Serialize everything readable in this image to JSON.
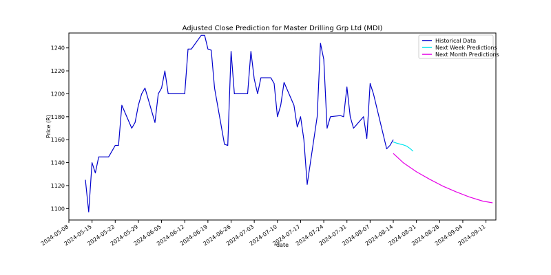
{
  "chart_data": {
    "type": "line",
    "title": "Adjusted Close Prediction for Master Drilling Grp Ltd (MDI)",
    "xlabel": "date",
    "ylabel": "Price (R)",
    "xlim": [
      "2024-05-08",
      "2024-09-14"
    ],
    "ylim": [
      1090,
      1253
    ],
    "x_ticks": [
      "2024-05-08",
      "2024-05-15",
      "2024-05-22",
      "2024-05-29",
      "2024-06-05",
      "2024-06-12",
      "2024-06-19",
      "2024-06-26",
      "2024-07-03",
      "2024-07-10",
      "2024-07-17",
      "2024-07-24",
      "2024-07-31",
      "2024-08-07",
      "2024-08-14",
      "2024-08-21",
      "2024-08-28",
      "2024-09-04",
      "2024-09-11"
    ],
    "y_ticks": [
      1100,
      1120,
      1140,
      1160,
      1180,
      1200,
      1220,
      1240
    ],
    "legend_position": "top-right",
    "series": [
      {
        "name": "Historical Data",
        "color": "#0000cc",
        "x": [
          "2024-05-13",
          "2024-05-14",
          "2024-05-15",
          "2024-05-16",
          "2024-05-17",
          "2024-05-20",
          "2024-05-21",
          "2024-05-22",
          "2024-05-23",
          "2024-05-24",
          "2024-05-27",
          "2024-05-28",
          "2024-05-29",
          "2024-05-30",
          "2024-05-31",
          "2024-06-03",
          "2024-06-04",
          "2024-06-05",
          "2024-06-06",
          "2024-06-07",
          "2024-06-10",
          "2024-06-11",
          "2024-06-12",
          "2024-06-13",
          "2024-06-14",
          "2024-06-17",
          "2024-06-18",
          "2024-06-19",
          "2024-06-20",
          "2024-06-21",
          "2024-06-24",
          "2024-06-25",
          "2024-06-26",
          "2024-06-27",
          "2024-06-28",
          "2024-07-01",
          "2024-07-02",
          "2024-07-03",
          "2024-07-04",
          "2024-07-05",
          "2024-07-08",
          "2024-07-09",
          "2024-07-10",
          "2024-07-11",
          "2024-07-12",
          "2024-07-15",
          "2024-07-16",
          "2024-07-17",
          "2024-07-18",
          "2024-07-19",
          "2024-07-22",
          "2024-07-23",
          "2024-07-24",
          "2024-07-25",
          "2024-07-26",
          "2024-07-29",
          "2024-07-30",
          "2024-07-31",
          "2024-08-01",
          "2024-08-02",
          "2024-08-05",
          "2024-08-06",
          "2024-08-07",
          "2024-08-08",
          "2024-08-12",
          "2024-08-13",
          "2024-08-14"
        ],
        "y": [
          1125,
          1097,
          1140,
          1131,
          1145,
          1145,
          1150,
          1155,
          1155,
          1190,
          1170,
          1175,
          1190,
          1200,
          1205,
          1175,
          1200,
          1205,
          1220,
          1200,
          1200,
          1200,
          1200,
          1239,
          1239,
          1251,
          1251,
          1239,
          1238,
          1205,
          1156,
          1155,
          1237,
          1200,
          1200,
          1200,
          1237,
          1213,
          1200,
          1214,
          1214,
          1209,
          1180,
          1190,
          1210,
          1190,
          1171,
          1180,
          1160,
          1121,
          1180,
          1244,
          1230,
          1170,
          1180,
          1181,
          1180,
          1206,
          1180,
          1170,
          1180,
          1161,
          1209,
          1200,
          1152,
          1155,
          1160
        ]
      },
      {
        "name": "Next Week Predictions",
        "color": "#00e5ee",
        "x": [
          "2024-08-14",
          "2024-08-15",
          "2024-08-16",
          "2024-08-17",
          "2024-08-18",
          "2024-08-19",
          "2024-08-20"
        ],
        "y": [
          1158,
          1157,
          1156.2,
          1155.5,
          1154.5,
          1152.5,
          1150
        ]
      },
      {
        "name": "Next Month Predictions",
        "color": "#e600e6",
        "x": [
          "2024-08-14",
          "2024-08-17",
          "2024-08-21",
          "2024-08-25",
          "2024-08-29",
          "2024-09-02",
          "2024-09-06",
          "2024-09-10",
          "2024-09-13"
        ],
        "y": [
          1148,
          1140,
          1132,
          1125.5,
          1119.5,
          1114.5,
          1110,
          1106.5,
          1105
        ]
      }
    ]
  }
}
